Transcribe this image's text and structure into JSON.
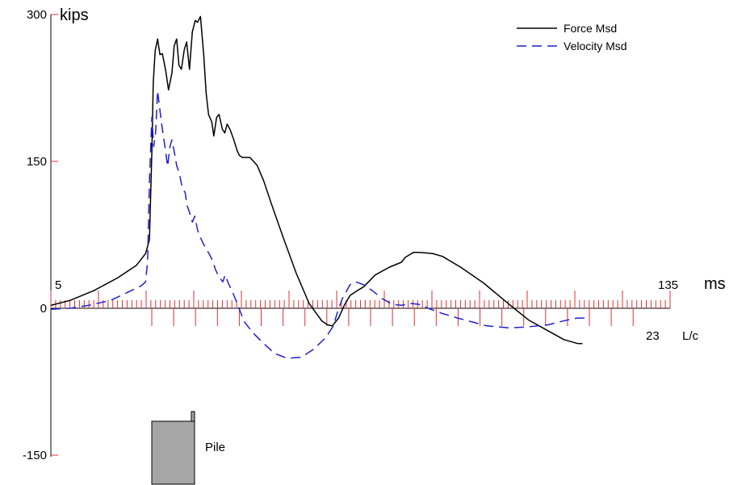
{
  "chart_data": {
    "type": "line",
    "ylabel": "kips",
    "xlabel": "ms",
    "lc_label": "L/c",
    "ylim": [
      -150,
      300
    ],
    "y_ticks": [
      300,
      150,
      0,
      -150
    ],
    "x_ms_range": [
      5,
      135
    ],
    "x_ms_tick_labels": [
      "5",
      "135"
    ],
    "lc_tick_label": "23",
    "lc_count": 23,
    "ms_minor_ticks": 130,
    "ms_major_every": 10,
    "pile_label": "Pile",
    "legend": {
      "position": "top-right",
      "entries": [
        "Force Msd",
        "Velocity Msd"
      ]
    },
    "colors": {
      "force": "#000000",
      "velocity": "#1f1fd0",
      "ticks": "#e03030",
      "pile": "#a6a6a6"
    },
    "series": [
      {
        "name": "Force Msd",
        "color": "#000000",
        "dash": "solid",
        "points": [
          [
            5.0,
            3
          ],
          [
            9.0,
            8
          ],
          [
            14.0,
            18
          ],
          [
            19.0,
            31
          ],
          [
            23.0,
            44
          ],
          [
            24.9,
            56
          ],
          [
            25.7,
            70
          ],
          [
            26.2,
            160
          ],
          [
            26.5,
            230
          ],
          [
            26.9,
            263
          ],
          [
            27.4,
            275
          ],
          [
            27.9,
            259
          ],
          [
            28.4,
            260
          ],
          [
            29.1,
            243
          ],
          [
            29.7,
            223
          ],
          [
            30.4,
            240
          ],
          [
            30.9,
            268
          ],
          [
            31.4,
            275
          ],
          [
            31.9,
            248
          ],
          [
            32.4,
            244
          ],
          [
            33.0,
            264
          ],
          [
            33.5,
            272
          ],
          [
            34.1,
            244
          ],
          [
            34.7,
            282
          ],
          [
            35.3,
            294
          ],
          [
            35.8,
            292
          ],
          [
            36.4,
            298
          ],
          [
            37.1,
            258
          ],
          [
            37.6,
            220
          ],
          [
            38.1,
            198
          ],
          [
            38.8,
            190
          ],
          [
            39.2,
            176
          ],
          [
            39.8,
            195
          ],
          [
            40.3,
            198
          ],
          [
            41.0,
            183
          ],
          [
            41.5,
            179
          ],
          [
            42.0,
            188
          ],
          [
            42.6,
            183
          ],
          [
            43.4,
            172
          ],
          [
            44.1,
            161
          ],
          [
            44.6,
            156
          ],
          [
            45.2,
            154
          ],
          [
            46.8,
            154
          ],
          [
            48.3,
            146
          ],
          [
            49.7,
            130
          ],
          [
            51.2,
            108
          ],
          [
            53.8,
            72
          ],
          [
            56.5,
            36
          ],
          [
            59.2,
            5
          ],
          [
            61.9,
            -13
          ],
          [
            63.1,
            -17
          ],
          [
            64.1,
            -18
          ],
          [
            65.4,
            -10
          ],
          [
            66.6,
            3
          ],
          [
            67.8,
            13
          ],
          [
            69.0,
            17
          ],
          [
            70.7,
            22
          ],
          [
            73.1,
            34
          ],
          [
            76.1,
            42
          ],
          [
            78.6,
            47
          ],
          [
            79.4,
            52
          ],
          [
            81.1,
            57
          ],
          [
            82.3,
            57
          ],
          [
            85.1,
            56
          ],
          [
            87.2,
            53
          ],
          [
            91.0,
            42
          ],
          [
            95.8,
            26
          ],
          [
            101.2,
            4
          ],
          [
            105.3,
            -12
          ],
          [
            109.0,
            -22
          ],
          [
            112.7,
            -32
          ],
          [
            115.6,
            -36
          ],
          [
            116.6,
            -36
          ]
        ]
      },
      {
        "name": "Velocity Msd",
        "color": "#1f1fd0",
        "dash": "dashed",
        "points": [
          [
            5.0,
            -1
          ],
          [
            9.0,
            0
          ],
          [
            12.9,
            3
          ],
          [
            17.5,
            8
          ],
          [
            21.4,
            17
          ],
          [
            24.0,
            23
          ],
          [
            24.9,
            27
          ],
          [
            25.3,
            48
          ],
          [
            25.7,
            130
          ],
          [
            26.2,
            195
          ],
          [
            26.6,
            165
          ],
          [
            27.0,
            180
          ],
          [
            27.4,
            222
          ],
          [
            28.2,
            190
          ],
          [
            29.1,
            160
          ],
          [
            29.5,
            145
          ],
          [
            30.0,
            165
          ],
          [
            30.4,
            172
          ],
          [
            30.9,
            160
          ],
          [
            31.4,
            146
          ],
          [
            32.0,
            137
          ],
          [
            32.6,
            123
          ],
          [
            33.2,
            118
          ],
          [
            33.6,
            105
          ],
          [
            34.1,
            98
          ],
          [
            34.7,
            88
          ],
          [
            35.2,
            94
          ],
          [
            35.8,
            80
          ],
          [
            36.4,
            72
          ],
          [
            37.1,
            65
          ],
          [
            37.7,
            60
          ],
          [
            38.3,
            55
          ],
          [
            39.0,
            48
          ],
          [
            39.6,
            39
          ],
          [
            40.3,
            32
          ],
          [
            41.1,
            27
          ],
          [
            41.6,
            34
          ],
          [
            42.3,
            25
          ],
          [
            43.1,
            17
          ],
          [
            44.1,
            5
          ],
          [
            44.9,
            -5
          ],
          [
            45.5,
            -13
          ],
          [
            47.4,
            -25
          ],
          [
            49.7,
            -36
          ],
          [
            51.9,
            -46
          ],
          [
            54.6,
            -51
          ],
          [
            57.6,
            -50
          ],
          [
            60.1,
            -42
          ],
          [
            62.7,
            -30
          ],
          [
            64.3,
            -18
          ],
          [
            65.1,
            -5
          ],
          [
            66.2,
            10
          ],
          [
            67.8,
            24
          ],
          [
            69.0,
            27
          ],
          [
            70.7,
            24
          ],
          [
            72.5,
            18
          ],
          [
            74.5,
            10
          ],
          [
            76.7,
            4
          ],
          [
            78.7,
            3
          ],
          [
            80.3,
            5
          ],
          [
            82.3,
            4
          ],
          [
            84.2,
            0
          ],
          [
            87.0,
            -5
          ],
          [
            90.4,
            -10
          ],
          [
            93.5,
            -14
          ],
          [
            96.5,
            -18
          ],
          [
            101.2,
            -20
          ],
          [
            105.0,
            -19
          ],
          [
            109.3,
            -17
          ],
          [
            112.5,
            -13
          ],
          [
            115.5,
            -10
          ],
          [
            117.4,
            -10
          ]
        ]
      }
    ]
  }
}
